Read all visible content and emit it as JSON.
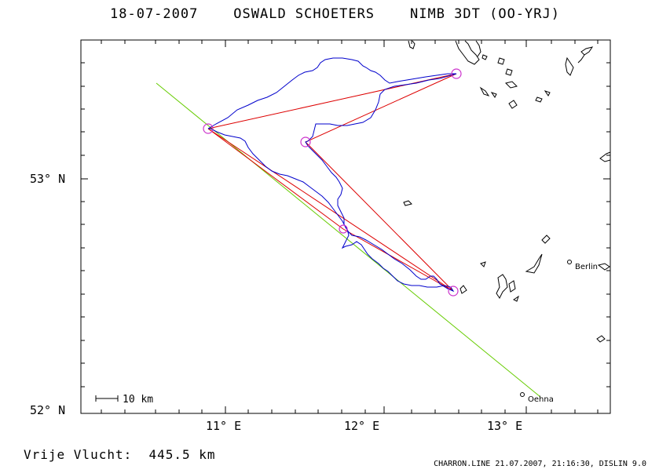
{
  "title": "18-07-2007    OSWALD SCHOETERS    NIMB 3DT (OO-YRJ)",
  "footer_left": "Vrije Vlucht:  445.5 km",
  "footer_right": "CHARRON.LINE 21.07.2007, 21:16:30, DISLIN 9.0",
  "scale_label": "10 km",
  "axes": {
    "lat_labels": [
      "53° N",
      "52° N"
    ],
    "lon_labels": [
      "11° E",
      "12° E",
      "13° E"
    ]
  },
  "places": {
    "berlin": "Berlin",
    "oehna": "Oehna"
  },
  "colors": {
    "track": "#0000cc",
    "task": "#dd0000",
    "guide": "#66cc00",
    "turnpoint": "#cc33cc",
    "coast": "#000000"
  }
}
